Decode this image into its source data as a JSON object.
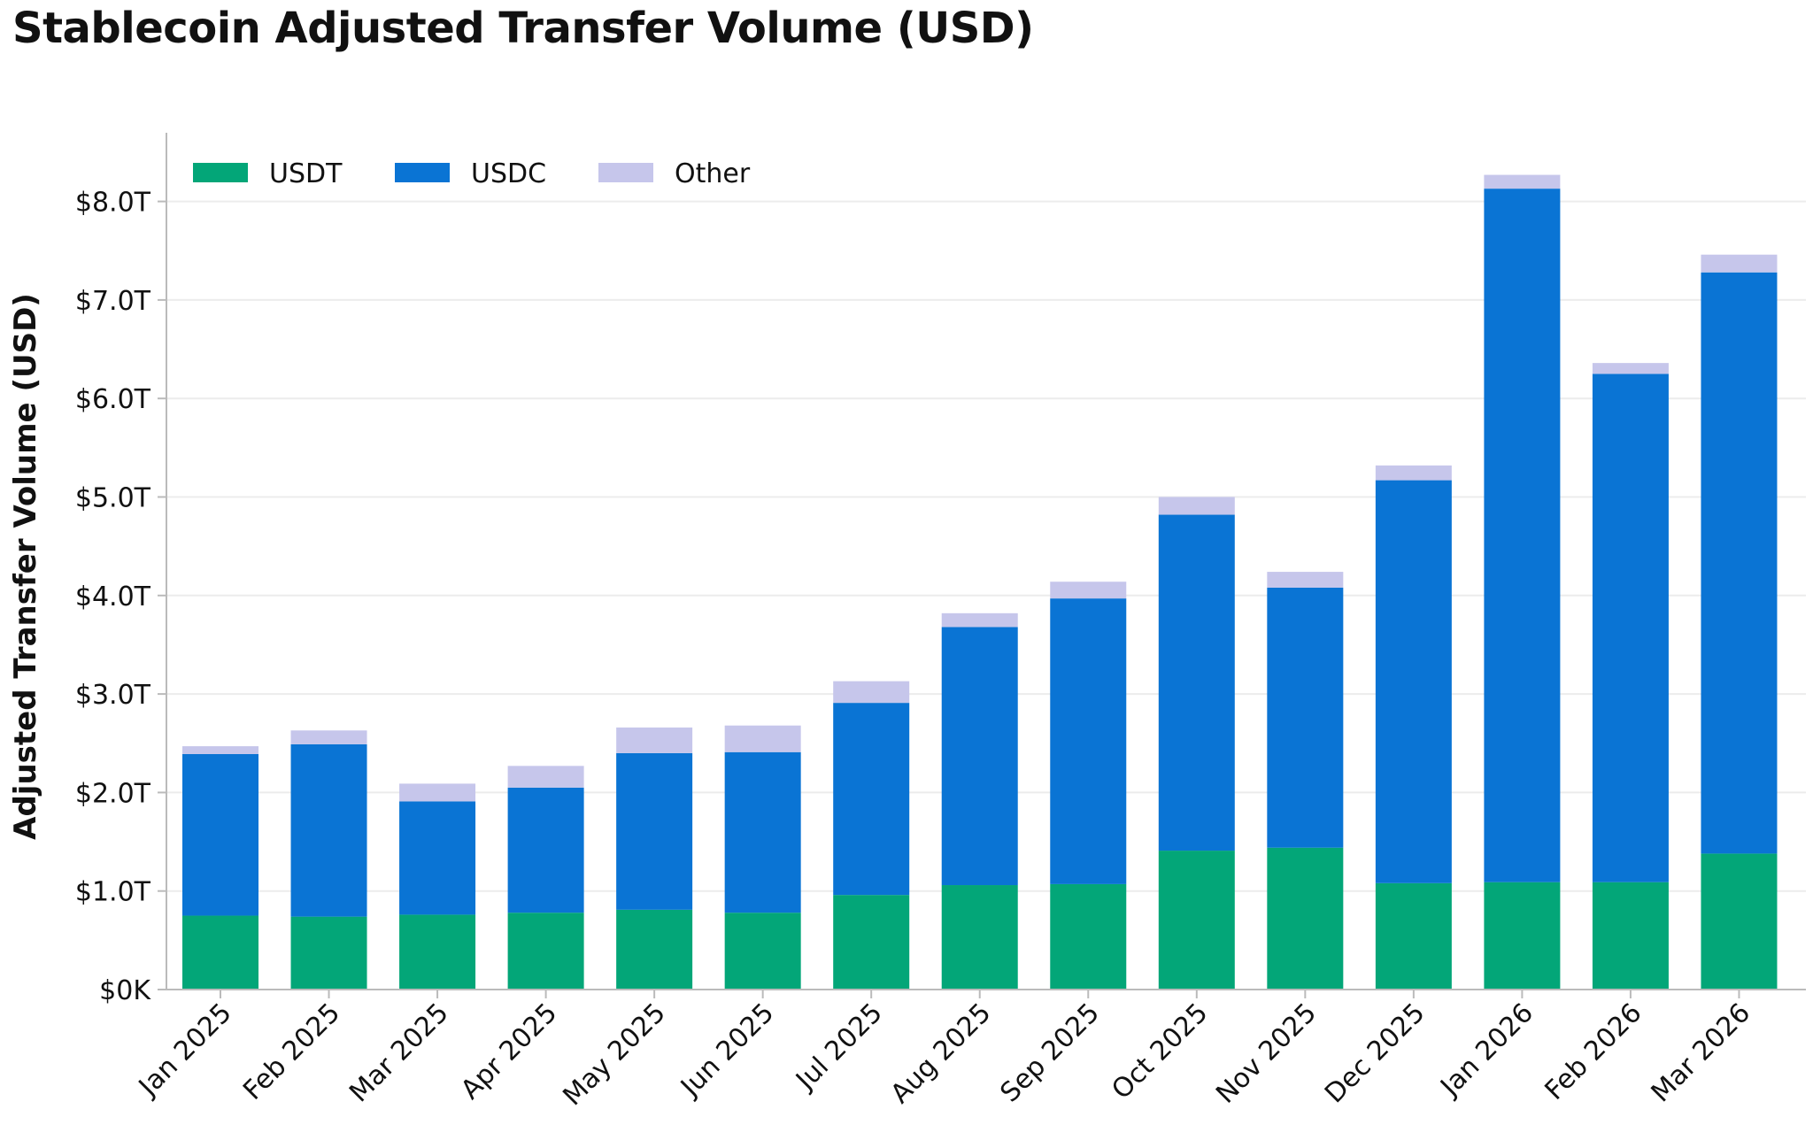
{
  "title": "Stablecoin Adjusted Transfer Volume (USD)",
  "chart_data": {
    "type": "bar",
    "stacked": true,
    "title": "Stablecoin Adjusted Transfer Volume (USD)",
    "xlabel": "",
    "ylabel": "Adjusted Transfer Volume (USD)",
    "ylim": [
      0,
      8.7
    ],
    "yticks": [
      0,
      1,
      2,
      3,
      4,
      5,
      6,
      7,
      8
    ],
    "ytick_labels": [
      "$0K",
      "$1.0T",
      "$2.0T",
      "$3.0T",
      "$4.0T",
      "$5.0T",
      "$6.0T",
      "$7.0T",
      "$8.0T"
    ],
    "grid": true,
    "legend": "top-left",
    "categories": [
      "Jan 2025",
      "Feb 2025",
      "Mar 2025",
      "Apr 2025",
      "May 2025",
      "Jun 2025",
      "Jul 2025",
      "Aug 2025",
      "Sep 2025",
      "Oct 2025",
      "Nov 2025",
      "Dec 2025",
      "Jan 2026",
      "Feb 2026",
      "Mar 2026"
    ],
    "series": [
      {
        "name": "USDT",
        "color": "#03a678",
        "values": [
          0.75,
          0.74,
          0.76,
          0.78,
          0.81,
          0.78,
          0.96,
          1.06,
          1.07,
          1.41,
          1.44,
          1.08,
          1.09,
          1.09,
          1.38
        ]
      },
      {
        "name": "USDC",
        "color": "#0a74d4",
        "values": [
          1.64,
          1.75,
          1.15,
          1.27,
          1.59,
          1.63,
          1.95,
          2.62,
          2.9,
          3.41,
          2.64,
          4.09,
          7.04,
          5.16,
          5.9
        ]
      },
      {
        "name": "Other",
        "color": "#c6c6eb",
        "values": [
          0.08,
          0.14,
          0.18,
          0.22,
          0.26,
          0.27,
          0.22,
          0.14,
          0.17,
          0.18,
          0.16,
          0.15,
          0.14,
          0.11,
          0.18
        ]
      }
    ]
  }
}
